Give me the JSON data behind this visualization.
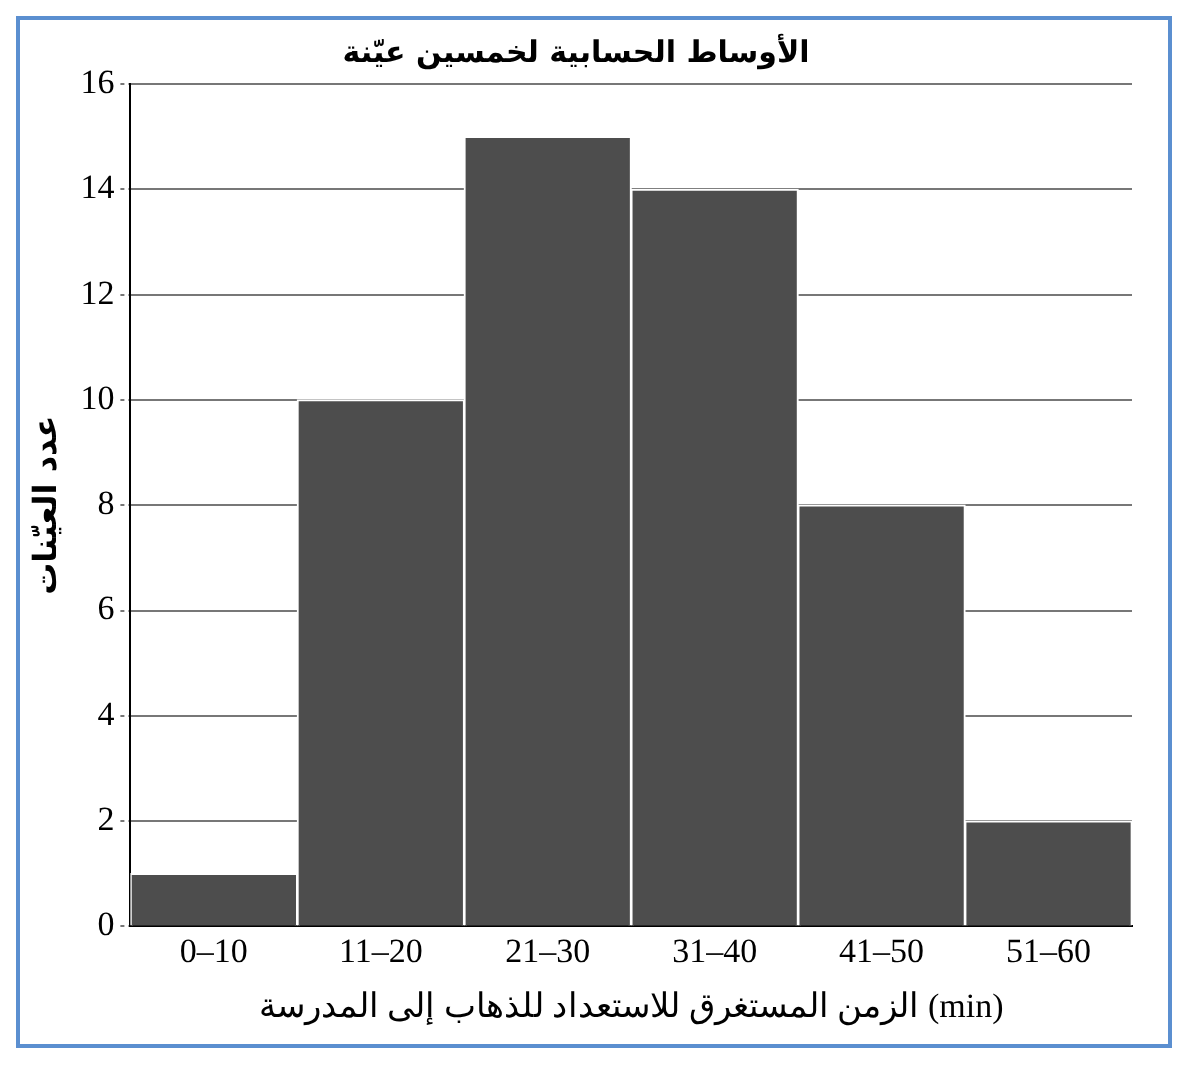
{
  "chart_data": {
    "type": "bar",
    "title": "الأوساط الحسابية لخمسين عيّنة",
    "xlabel": "الزمن المستغرق للاستعداد للذهاب إلى المدرسة (min)",
    "ylabel": "عدد العيّنات",
    "categories": [
      "0–10",
      "11–20",
      "21–30",
      "31–40",
      "41–50",
      "51–60"
    ],
    "values": [
      1,
      10,
      15,
      14,
      8,
      2
    ],
    "color": "#4d4d4d",
    "ylim": [
      0,
      16
    ],
    "yticks": [
      0,
      2,
      4,
      6,
      8,
      10,
      12,
      14,
      16
    ],
    "grid": "y"
  }
}
